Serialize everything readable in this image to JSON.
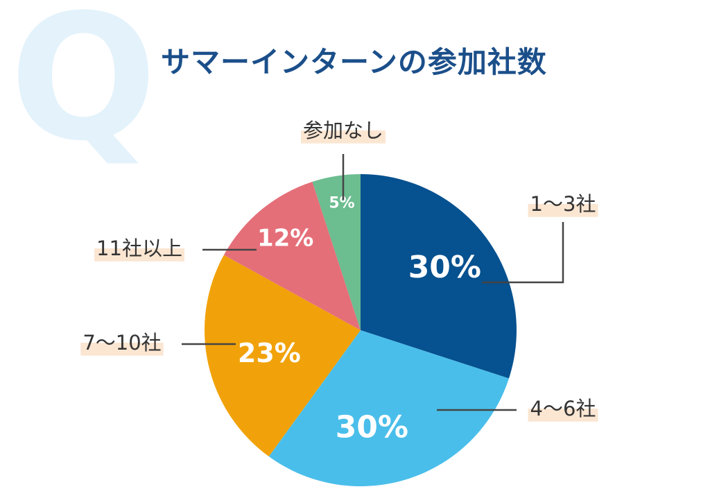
{
  "header": {
    "q_mark": "Q",
    "title": "サマーインターンの参加社数"
  },
  "chart_data": {
    "type": "pie",
    "title": "サマーインターンの参加社数",
    "slices": [
      {
        "label": "1〜3社",
        "value": 30,
        "value_label": "30%",
        "color": "#06518f"
      },
      {
        "label": "4〜6社",
        "value": 30,
        "value_label": "30%",
        "color": "#4abeea"
      },
      {
        "label": "7〜10社",
        "value": 23,
        "value_label": "23%",
        "color": "#f1a20a"
      },
      {
        "label": "11社以上",
        "value": 12,
        "value_label": "12%",
        "color": "#e56f79"
      },
      {
        "label": "参加なし",
        "value": 5,
        "value_label": "5%",
        "color": "#6cbd90"
      }
    ],
    "start_angle_deg": 0,
    "direction": "clockwise",
    "label_highlight_color": "#fbe6d2",
    "leader_line_color": "#444444",
    "value_text_color": "#ffffff"
  }
}
